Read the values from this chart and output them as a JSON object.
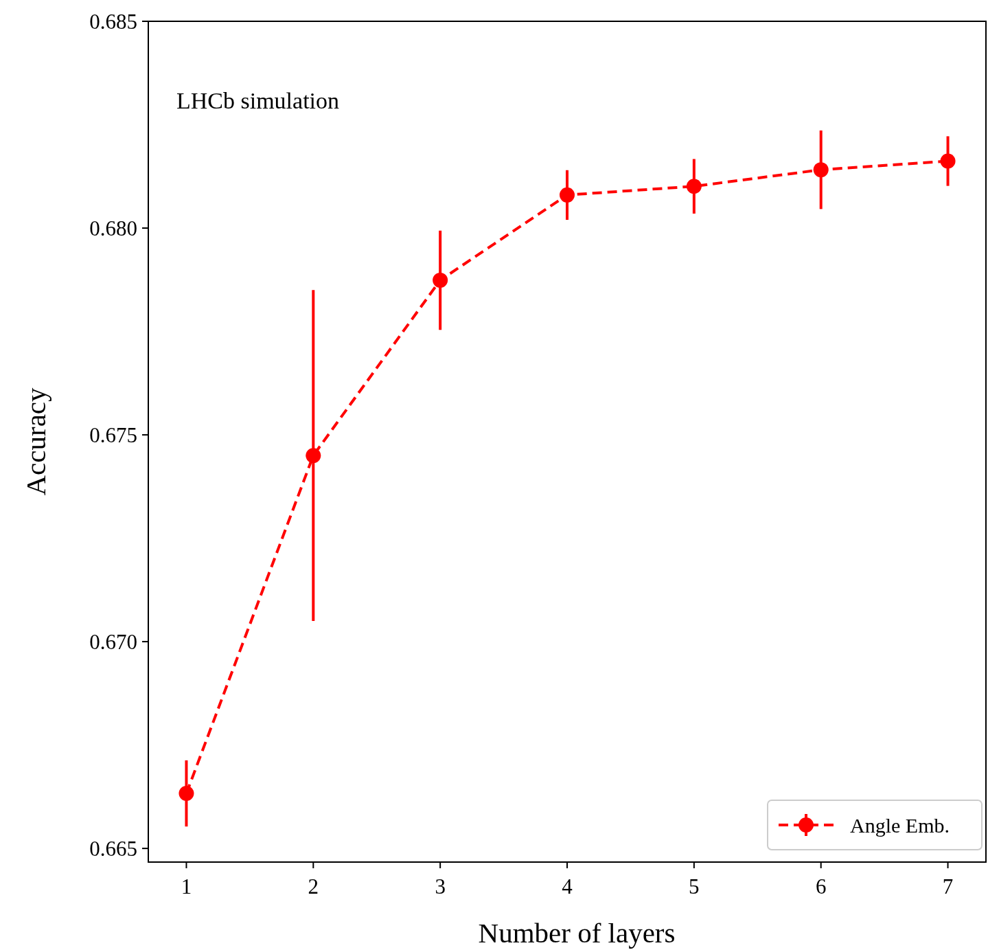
{
  "chart_data": {
    "type": "line",
    "xlabel": "Number of layers",
    "ylabel": "Accuracy",
    "annotations": [
      "LHCb simulation"
    ],
    "x": [
      1,
      2,
      3,
      4,
      5,
      6,
      7
    ],
    "series": [
      {
        "name": "Angle Emb.",
        "color": "#ff0000",
        "values": [
          0.66633,
          0.6745,
          0.67874,
          0.6808,
          0.68101,
          0.68141,
          0.68162
        ],
        "errors": [
          0.0008,
          0.004,
          0.0012,
          0.0006,
          0.00066,
          0.00095,
          0.0006
        ]
      }
    ],
    "xlim": [
      0.7,
      7.3
    ],
    "xticks": [
      1,
      2,
      3,
      4,
      5,
      6,
      7
    ],
    "ylim": [
      0.66467,
      0.685
    ],
    "yticks": [
      {
        "value": 0.665,
        "label": "0.665"
      },
      {
        "value": 0.67,
        "label": "0.670"
      },
      {
        "value": 0.675,
        "label": "0.675"
      },
      {
        "value": 0.68,
        "label": "0.680"
      },
      {
        "value": 0.685,
        "label": "0.685"
      }
    ],
    "grid": false,
    "legend": "bottom right",
    "marker": "circle",
    "line_style": "dashed"
  }
}
